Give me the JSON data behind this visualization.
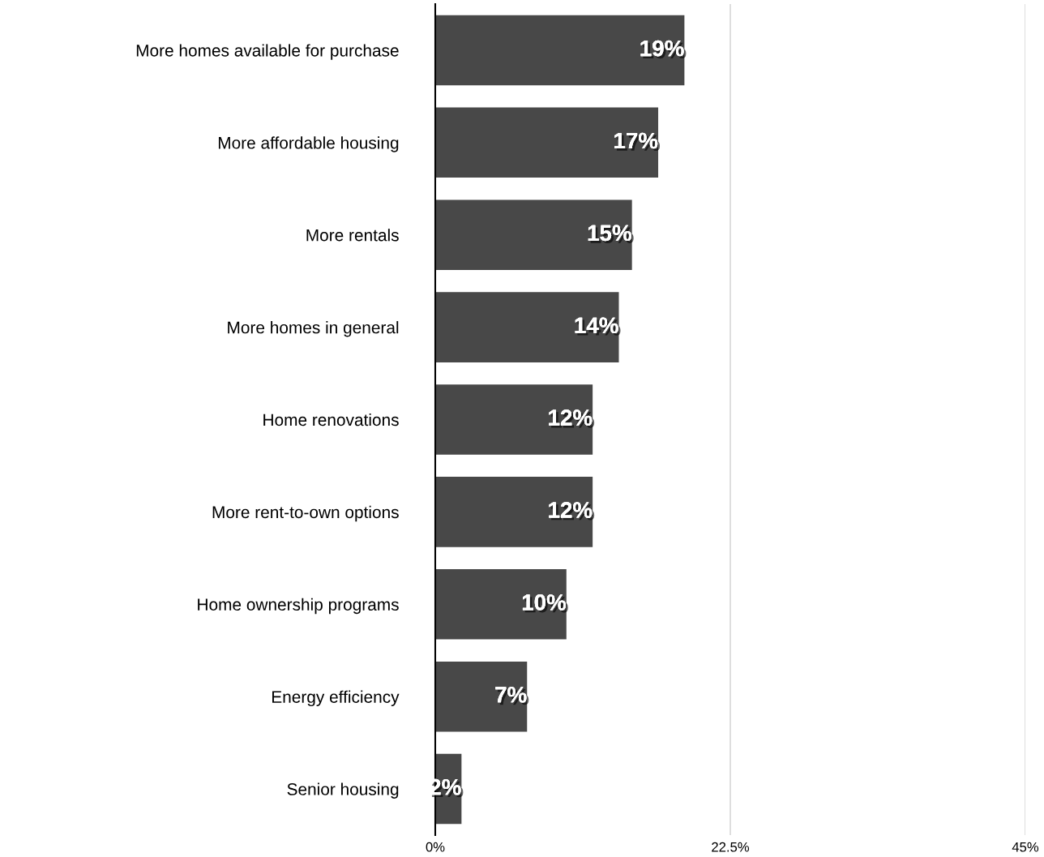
{
  "chart_data": {
    "type": "bar",
    "orientation": "horizontal",
    "categories": [
      "More homes available for purchase",
      "More affordable housing",
      "More rentals",
      "More homes in general",
      "Home renovations",
      "More rent-to-own options",
      "Home ownership programs",
      "Energy efficiency",
      "Senior housing"
    ],
    "values": [
      19,
      17,
      15,
      14,
      12,
      12,
      10,
      7,
      2
    ],
    "value_labels": [
      "19%",
      "17%",
      "15%",
      "14%",
      "12%",
      "12%",
      "10%",
      "7%",
      "2%"
    ],
    "color": "#484848",
    "xlim": [
      0,
      45
    ],
    "xticks": [
      {
        "value": 0,
        "label": "0%"
      },
      {
        "value": 22.5,
        "label": "22.5%"
      },
      {
        "value": 45,
        "label": "45%"
      }
    ],
    "grid": "x"
  }
}
